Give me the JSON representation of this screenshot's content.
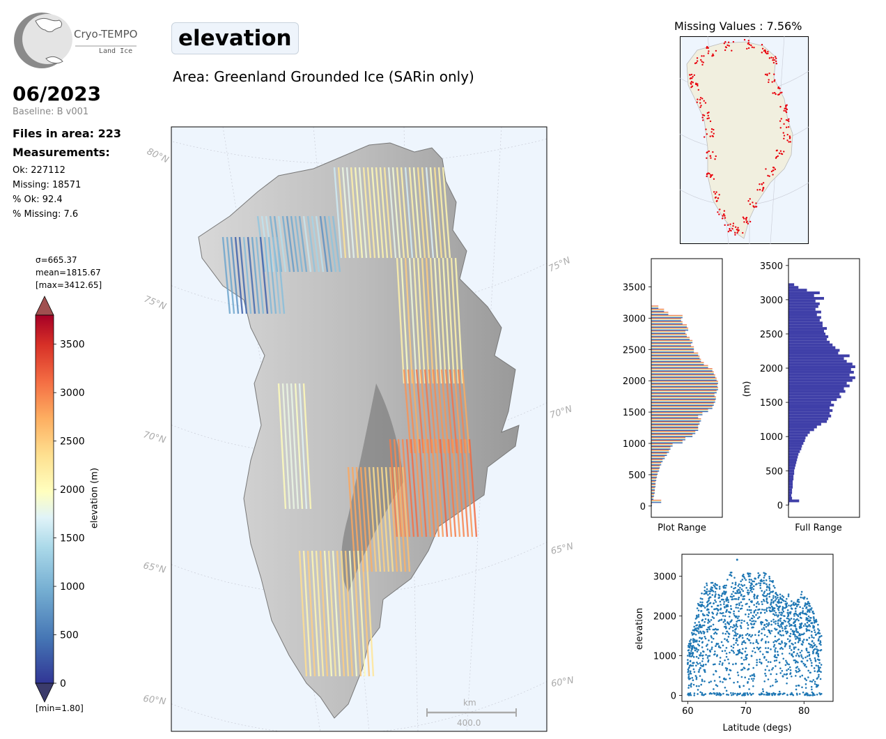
{
  "header": {
    "logo_name": "Cryo-TEMPO",
    "logo_sub": "Land Ice",
    "variable": "elevation",
    "area": "Area: Greenland Grounded Ice (SARin only)",
    "date": "06/2023",
    "baseline": "Baseline: B v001"
  },
  "stats": {
    "files": "Files in area: 223",
    "measurements_title": "Measurements:",
    "ok": "Ok: 227112",
    "missing": "Missing: 18571",
    "pct_ok": "% Ok: 92.4",
    "pct_missing": "% Missing: 7.6"
  },
  "colorbar": {
    "sigma": "σ=665.37",
    "mean": "mean=1815.67",
    "max": "[max=3412.65]",
    "min": "[min=1.80]",
    "label": "elevation (m)",
    "ticks": [
      "0",
      "500",
      "1000",
      "1500",
      "2000",
      "2500",
      "3000",
      "3500"
    ]
  },
  "map": {
    "lat_labels_left": [
      "80°N",
      "75°N",
      "70°N",
      "65°N",
      "60°N"
    ],
    "lat_labels_right": [
      "75°N",
      "70°N",
      "65°N",
      "60°N"
    ],
    "scalebar_unit": "km",
    "scalebar_value": "400.0"
  },
  "missing_map": {
    "title": "Missing Values : 7.56%"
  },
  "colors": {
    "ocean": "#eef5fd",
    "land": "#f1efdf",
    "missing_points": "#e8000b",
    "hist_full": "#3f3fa8",
    "scatter": "#1f77b4",
    "axis_label_gray": "#aaaaaa"
  },
  "chart_data": [
    {
      "type": "bar",
      "name": "plot_range_histogram",
      "xlabel": "Plot Range",
      "ylabel": "",
      "orientation": "horizontal",
      "ylim": [
        -180,
        3950
      ],
      "yticks": [
        "0",
        "500",
        "1000",
        "1500",
        "2000",
        "2500",
        "3000",
        "3500"
      ],
      "bins": [
        [
          0,
          1
        ],
        [
          50,
          14
        ],
        [
          100,
          3
        ],
        [
          150,
          4
        ],
        [
          200,
          5
        ],
        [
          250,
          5
        ],
        [
          300,
          6
        ],
        [
          350,
          6
        ],
        [
          400,
          7
        ],
        [
          450,
          8
        ],
        [
          500,
          9
        ],
        [
          550,
          11
        ],
        [
          600,
          12
        ],
        [
          650,
          14
        ],
        [
          700,
          16
        ],
        [
          750,
          19
        ],
        [
          800,
          22
        ],
        [
          850,
          25
        ],
        [
          900,
          27
        ],
        [
          950,
          30
        ],
        [
          1000,
          44
        ],
        [
          1050,
          48
        ],
        [
          1100,
          58
        ],
        [
          1150,
          62
        ],
        [
          1200,
          66
        ],
        [
          1250,
          66
        ],
        [
          1300,
          68
        ],
        [
          1350,
          70
        ],
        [
          1400,
          66
        ],
        [
          1450,
          72
        ],
        [
          1500,
          80
        ],
        [
          1550,
          86
        ],
        [
          1600,
          88
        ],
        [
          1650,
          90
        ],
        [
          1700,
          91
        ],
        [
          1750,
          89
        ],
        [
          1800,
          92
        ],
        [
          1850,
          94
        ],
        [
          1900,
          93
        ],
        [
          1950,
          94
        ],
        [
          2000,
          92
        ],
        [
          2050,
          90
        ],
        [
          2100,
          88
        ],
        [
          2150,
          86
        ],
        [
          2200,
          80
        ],
        [
          2250,
          74
        ],
        [
          2300,
          70
        ],
        [
          2350,
          68
        ],
        [
          2400,
          66
        ],
        [
          2450,
          60
        ],
        [
          2500,
          60
        ],
        [
          2550,
          56
        ],
        [
          2600,
          58
        ],
        [
          2650,
          54
        ],
        [
          2700,
          50
        ],
        [
          2750,
          48
        ],
        [
          2800,
          52
        ],
        [
          2850,
          50
        ],
        [
          2900,
          44
        ],
        [
          2950,
          42
        ],
        [
          3000,
          44
        ],
        [
          3050,
          24
        ],
        [
          3100,
          18
        ],
        [
          3150,
          10
        ]
      ]
    },
    {
      "type": "bar",
      "name": "full_range_histogram",
      "xlabel": "Full Range",
      "ylabel": "(m)",
      "orientation": "horizontal",
      "ylim": [
        -180,
        3600
      ],
      "yticks": [
        "0",
        "500",
        "1000",
        "1500",
        "2000",
        "2500",
        "3000",
        "3500"
      ],
      "bins": [
        [
          0,
          1
        ],
        [
          40,
          15
        ],
        [
          80,
          5
        ],
        [
          120,
          4
        ],
        [
          160,
          5
        ],
        [
          200,
          5
        ],
        [
          240,
          6
        ],
        [
          280,
          6
        ],
        [
          320,
          6
        ],
        [
          360,
          7
        ],
        [
          400,
          7
        ],
        [
          440,
          8
        ],
        [
          480,
          8
        ],
        [
          520,
          9
        ],
        [
          560,
          10
        ],
        [
          600,
          11
        ],
        [
          640,
          12
        ],
        [
          680,
          13
        ],
        [
          720,
          14
        ],
        [
          760,
          16
        ],
        [
          800,
          18
        ],
        [
          840,
          19
        ],
        [
          880,
          21
        ],
        [
          920,
          23
        ],
        [
          960,
          24
        ],
        [
          1000,
          27
        ],
        [
          1040,
          30
        ],
        [
          1080,
          36
        ],
        [
          1120,
          40
        ],
        [
          1160,
          46
        ],
        [
          1200,
          54
        ],
        [
          1240,
          56
        ],
        [
          1280,
          60
        ],
        [
          1320,
          58
        ],
        [
          1360,
          62
        ],
        [
          1400,
          58
        ],
        [
          1440,
          64
        ],
        [
          1480,
          60
        ],
        [
          1520,
          68
        ],
        [
          1560,
          74
        ],
        [
          1600,
          72
        ],
        [
          1640,
          80
        ],
        [
          1680,
          78
        ],
        [
          1720,
          86
        ],
        [
          1760,
          82
        ],
        [
          1800,
          90
        ],
        [
          1840,
          94
        ],
        [
          1880,
          86
        ],
        [
          1920,
          92
        ],
        [
          1960,
          88
        ],
        [
          2000,
          94
        ],
        [
          2040,
          90
        ],
        [
          2080,
          82
        ],
        [
          2120,
          78
        ],
        [
          2160,
          86
        ],
        [
          2200,
          70
        ],
        [
          2240,
          72
        ],
        [
          2280,
          66
        ],
        [
          2320,
          62
        ],
        [
          2360,
          58
        ],
        [
          2400,
          54
        ],
        [
          2440,
          56
        ],
        [
          2480,
          52
        ],
        [
          2520,
          50
        ],
        [
          2560,
          54
        ],
        [
          2600,
          48
        ],
        [
          2640,
          48
        ],
        [
          2680,
          44
        ],
        [
          2720,
          46
        ],
        [
          2760,
          40
        ],
        [
          2800,
          46
        ],
        [
          2840,
          38
        ],
        [
          2880,
          42
        ],
        [
          2920,
          44
        ],
        [
          2960,
          38
        ],
        [
          3000,
          50
        ],
        [
          3040,
          36
        ],
        [
          3080,
          44
        ],
        [
          3120,
          26
        ],
        [
          3160,
          14
        ],
        [
          3200,
          8
        ]
      ]
    },
    {
      "type": "scatter",
      "name": "elevation_vs_latitude",
      "xlabel": "Latitude (degs)",
      "ylabel": "elevation",
      "xlim": [
        59,
        85
      ],
      "ylim": [
        -150,
        3550
      ],
      "xticks": [
        "60",
        "70",
        "80"
      ],
      "yticks": [
        "0",
        "1000",
        "2000",
        "3000"
      ],
      "envelope": [
        [
          60.0,
          1200
        ],
        [
          61.0,
          1800
        ],
        [
          62.0,
          2450
        ],
        [
          63.0,
          2800
        ],
        [
          64.0,
          2900
        ],
        [
          65.0,
          2850
        ],
        [
          66.0,
          2750
        ],
        [
          67.0,
          2950
        ],
        [
          67.6,
          3220
        ],
        [
          68.5,
          2750
        ],
        [
          69.5,
          3050
        ],
        [
          70.5,
          3100
        ],
        [
          71.5,
          3000
        ],
        [
          72.5,
          3150
        ],
        [
          73.5,
          3100
        ],
        [
          74.5,
          2950
        ],
        [
          75.5,
          2650
        ],
        [
          76.5,
          2500
        ],
        [
          77.5,
          2550
        ],
        [
          78.5,
          2300
        ],
        [
          79.5,
          2650
        ],
        [
          80.5,
          2450
        ],
        [
          81.0,
          2300
        ],
        [
          82.0,
          2000
        ],
        [
          83.0,
          1500
        ]
      ],
      "outlier": [
        68.5,
        3412
      ]
    }
  ]
}
